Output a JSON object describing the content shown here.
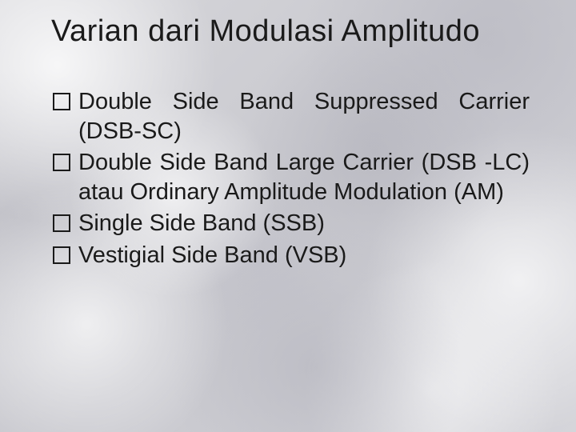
{
  "slide": {
    "title": "Varian dari Modulasi Amplitudo",
    "bullets": [
      "Double Side Band Suppressed Carrier (DSB-SC)",
      "Double Side Band Large Carrier (DSB -LC) atau Ordinary Amplitude Modulation (AM)",
      "Single Side Band (SSB)",
      "Vestigial Side Band (VSB)"
    ]
  },
  "style": {
    "title_fontsize": 38,
    "bullet_fontsize": 29,
    "text_color": "#1a1a1a",
    "bullet_marker": "hollow-square",
    "font_family": "Comic Sans MS",
    "background": {
      "type": "marble-texture",
      "base_colors": [
        "#d8d8dc",
        "#c8c8ce",
        "#d5d5da"
      ],
      "highlight": "#ffffff",
      "shadow": "#a8a8b2"
    },
    "text_align_bullets": "justify"
  }
}
